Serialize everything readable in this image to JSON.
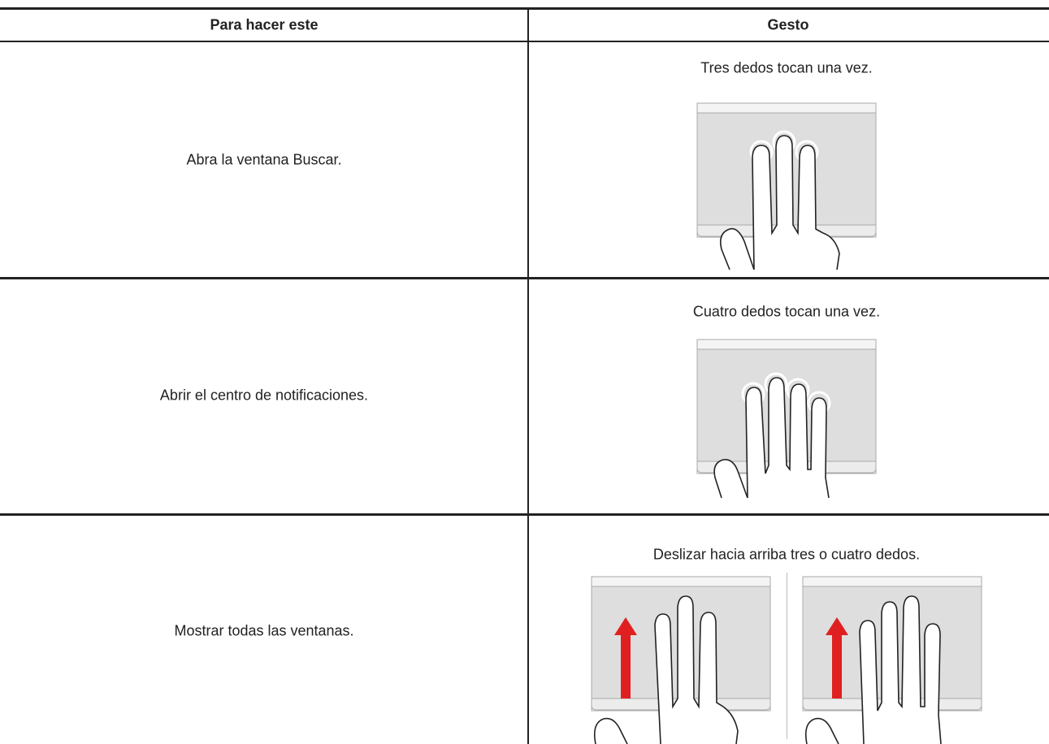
{
  "table": {
    "headers": [
      "Para hacer este",
      "Gesto"
    ],
    "rows": [
      [
        "Abra la ventana Buscar.",
        "Tres dedos tocan una vez."
      ],
      [
        "Abrir el centro de notificaciones.",
        "Cuatro dedos tocan una vez."
      ],
      [
        "Mostrar todas las ventanas.",
        "Deslizar hacia arriba tres o cuatro dedos."
      ]
    ]
  }
}
